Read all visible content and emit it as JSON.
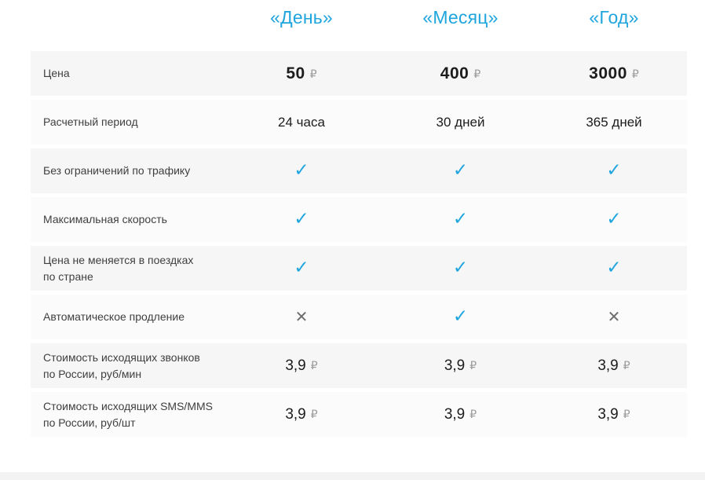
{
  "colors": {
    "accent": "#1fa5dd",
    "row_odd": "#f6f6f6",
    "row_even": "#fbfbfb"
  },
  "currency_symbol": "₽",
  "icons": {
    "check": "✓",
    "cross": "✕"
  },
  "header": {
    "columns": [
      "«День»",
      "«Месяц»",
      "«Год»"
    ]
  },
  "table": {
    "rows": [
      {
        "label": "Цена",
        "type": "price",
        "values": [
          "50",
          "400",
          "3000"
        ]
      },
      {
        "label": "Расчетный период",
        "type": "text",
        "values": [
          "24 часа",
          "30 дней",
          "365 дней"
        ]
      },
      {
        "label": "Без ограничений по трафику",
        "type": "bool",
        "values": [
          true,
          true,
          true
        ]
      },
      {
        "label": "Максимальная скорость",
        "type": "bool",
        "values": [
          true,
          true,
          true
        ]
      },
      {
        "label": "Цена не меняется в поездках\nпо стране",
        "type": "bool",
        "values": [
          true,
          true,
          true
        ]
      },
      {
        "label": "Автоматическое продление",
        "type": "bool",
        "values": [
          false,
          true,
          false
        ]
      },
      {
        "label": "Стоимость исходящих звонков\nпо России, руб/мин",
        "type": "price_small",
        "values": [
          "3,9",
          "3,9",
          "3,9"
        ]
      },
      {
        "label": "Стоимость исходящих SMS/MMS\nпо России, руб/шт",
        "type": "price_small",
        "values": [
          "3,9",
          "3,9",
          "3,9"
        ]
      }
    ]
  }
}
